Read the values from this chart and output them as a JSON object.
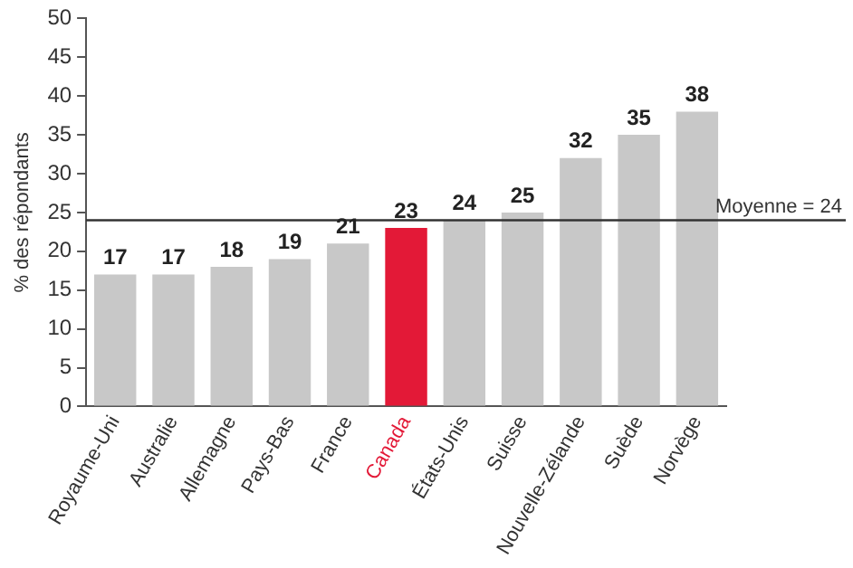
{
  "chart_data": {
    "type": "bar",
    "ylabel": "% des répondants",
    "categories": [
      "Royaume-Uni",
      "Australie",
      "Allemagne",
      "Pays-Bas",
      "France",
      "Canada",
      "États-Unis",
      "Suisse",
      "Nouvelle-Zélande",
      "Suède",
      "Norvège"
    ],
    "values": [
      17,
      17,
      18,
      19,
      21,
      23,
      24,
      25,
      32,
      35,
      38
    ],
    "colors": [
      "#c8c8c8",
      "#c8c8c8",
      "#c8c8c8",
      "#c8c8c8",
      "#c8c8c8",
      "#e31937",
      "#c8c8c8",
      "#c8c8c8",
      "#c8c8c8",
      "#c8c8c8",
      "#c8c8c8"
    ],
    "ylim": [
      0,
      50
    ],
    "yticks": [
      0,
      5,
      10,
      15,
      20,
      25,
      30,
      35,
      40,
      45,
      50
    ],
    "ref_lines": [
      {
        "axis": "y",
        "value": 24,
        "label": "Moyenne = 24",
        "color": "#333333"
      }
    ],
    "data_labels": true,
    "grid": false,
    "legend": false
  }
}
